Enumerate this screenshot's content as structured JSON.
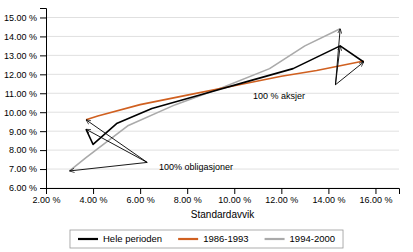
{
  "chart_data": {
    "type": "line",
    "xlabel": "Standardavvik",
    "xlim": [
      0.02,
      0.17
    ],
    "ylim": [
      0.06,
      0.155
    ],
    "xticks": [
      {
        "value": 0.02,
        "label": "2.00 %"
      },
      {
        "value": 0.04,
        "label": "4.00 %"
      },
      {
        "value": 0.06,
        "label": "6.00 %"
      },
      {
        "value": 0.08,
        "label": "8.00 %"
      },
      {
        "value": 0.1,
        "label": "10.00 %"
      },
      {
        "value": 0.12,
        "label": "12.00 %"
      },
      {
        "value": 0.14,
        "label": "14.00 %"
      },
      {
        "value": 0.16,
        "label": "16.00 %"
      }
    ],
    "yticks": [
      {
        "value": 0.06,
        "label": "6.00 %"
      },
      {
        "value": 0.07,
        "label": "7.00 %"
      },
      {
        "value": 0.08,
        "label": "8.00 %"
      },
      {
        "value": 0.09,
        "label": "9.00 %"
      },
      {
        "value": 0.1,
        "label": "10.00 %"
      },
      {
        "value": 0.11,
        "label": "11.00 %"
      },
      {
        "value": 0.12,
        "label": "12.00 %"
      },
      {
        "value": 0.13,
        "label": "13.00 %"
      },
      {
        "value": 0.14,
        "label": "14.00 %"
      },
      {
        "value": 0.15,
        "label": "15.00 %"
      }
    ],
    "grid": "y",
    "legend": "bottom",
    "series": [
      {
        "name": "Hele perioden",
        "color": "#000000",
        "x": [
          0.037,
          0.04,
          0.05,
          0.065,
          0.085,
          0.105,
          0.125,
          0.145,
          0.155
        ],
        "values": [
          0.091,
          0.083,
          0.094,
          0.102,
          0.109,
          0.116,
          0.123,
          0.135,
          0.1265
        ]
      },
      {
        "name": "1986-1993",
        "color": "#d06020",
        "x": [
          0.037,
          0.042,
          0.06,
          0.08,
          0.1,
          0.12,
          0.135,
          0.155
        ],
        "values": [
          0.096,
          0.098,
          0.104,
          0.109,
          0.114,
          0.119,
          0.122,
          0.127
        ]
      },
      {
        "name": "1994-2000",
        "color": "#aaaaaa",
        "x": [
          0.03,
          0.037,
          0.055,
          0.075,
          0.095,
          0.115,
          0.13,
          0.145
        ],
        "values": [
          0.069,
          0.076,
          0.093,
          0.104,
          0.113,
          0.123,
          0.135,
          0.144
        ]
      }
    ],
    "annotations": [
      {
        "text": "100% obligasjoner",
        "x": 0.068,
        "y": 0.0705,
        "arrows": [
          {
            "from": [
              0.063,
              0.0735
            ],
            "to": [
              0.037,
              0.091
            ]
          },
          {
            "from": [
              0.063,
              0.0735
            ],
            "to": [
              0.037,
              0.096
            ]
          },
          {
            "from": [
              0.063,
              0.0735
            ],
            "to": [
              0.03,
              0.069
            ]
          }
        ]
      },
      {
        "text": "100 % aksjer",
        "x": 0.108,
        "y": 0.108,
        "arrows": [
          {
            "from": [
              0.143,
              0.1145
            ],
            "to": [
              0.155,
              0.1265
            ]
          },
          {
            "from": [
              0.143,
              0.1145
            ],
            "to": [
              0.145,
              0.135
            ]
          },
          {
            "from": [
              0.143,
              0.1145
            ],
            "to": [
              0.145,
              0.144
            ]
          }
        ]
      }
    ]
  }
}
